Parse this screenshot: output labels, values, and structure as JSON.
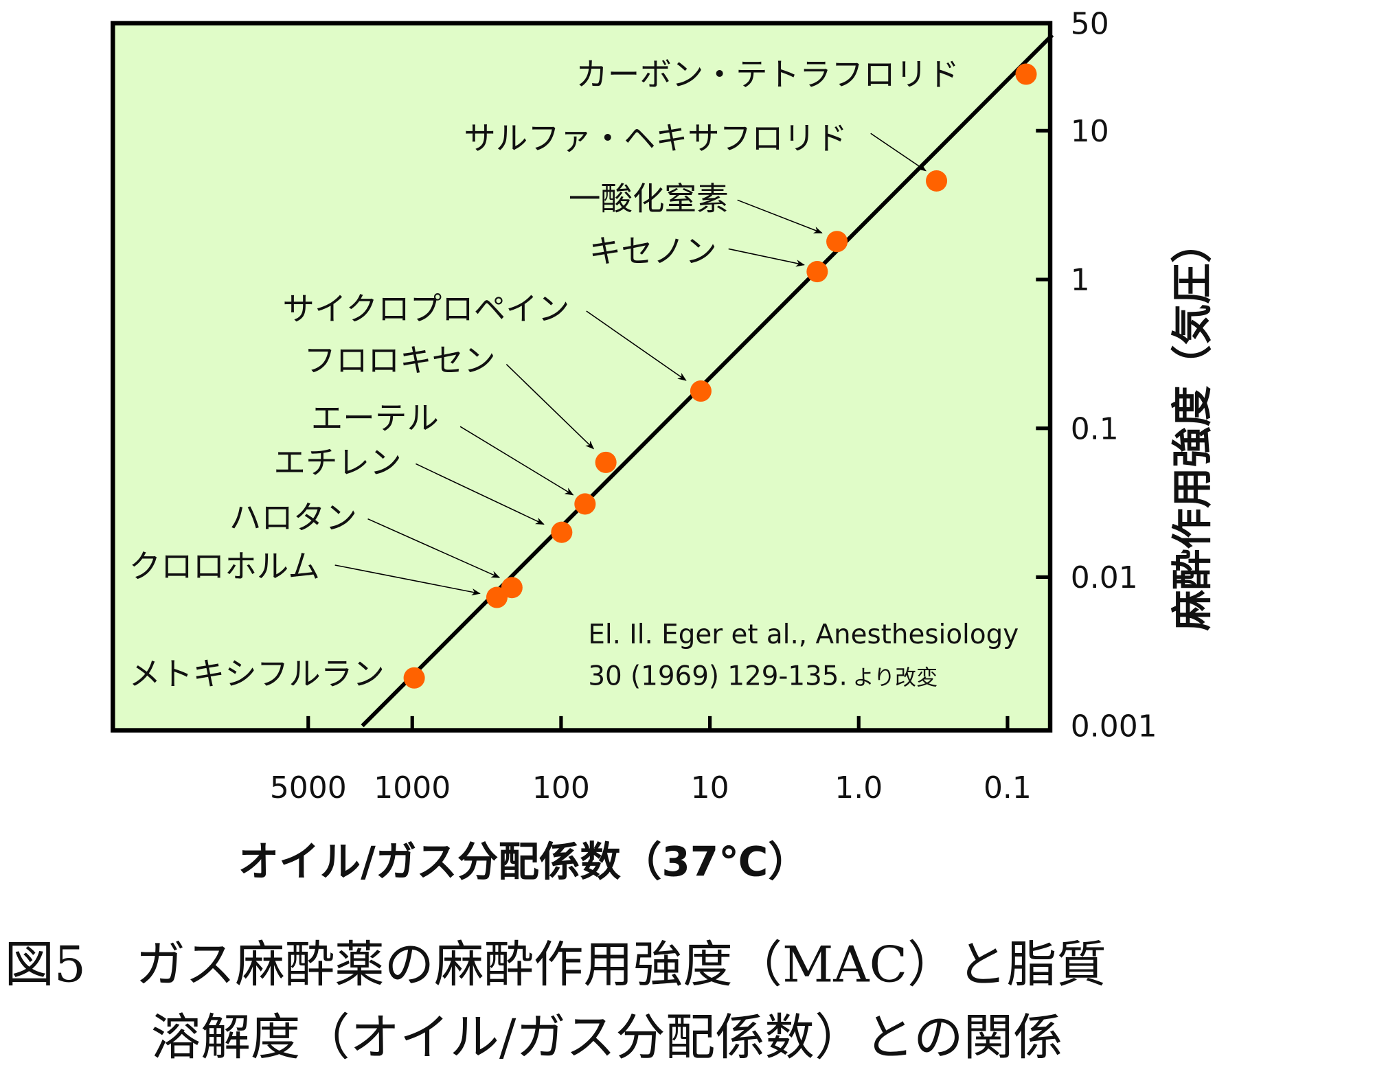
{
  "chart_data": {
    "type": "scatter",
    "title": "",
    "xlabel": "オイル/ガス分配係数（37℃）",
    "ylabel": "麻酔作用強度（気圧）",
    "x_scale": "log-reversed",
    "y_scale": "log",
    "xlim": [
      2500,
      0.045
    ],
    "ylim": [
      0.001,
      50
    ],
    "x_ticks": [
      5000,
      1000,
      100,
      10,
      1.0,
      0.1
    ],
    "x_tick_labels": [
      "5000",
      "1000",
      "100",
      "10",
      "1.0",
      "0.1"
    ],
    "y_ticks": [
      50,
      10,
      1,
      0.1,
      0.01,
      0.001
    ],
    "y_tick_labels": [
      "50",
      "10",
      "1",
      "0.1",
      "0.01",
      "0.001"
    ],
    "grid": false,
    "colors": {
      "background": "#e0fcc8",
      "point": "#ff6200",
      "line": "#000000"
    },
    "points": [
      {
        "name": "カーボン・テトラフロリド",
        "x": 0.075,
        "y": 24
      },
      {
        "name": "サルファ・ヘキサフロリド",
        "x": 0.3,
        "y": 4.6
      },
      {
        "name": "一酸化窒素",
        "x": 1.4,
        "y": 1.8
      },
      {
        "name": "キセノン",
        "x": 1.9,
        "y": 1.13
      },
      {
        "name": "サイクロプロペイン",
        "x": 11.5,
        "y": 0.178
      },
      {
        "name": "フロロキセン",
        "x": 50,
        "y": 0.059
      },
      {
        "name": "エーテル",
        "x": 69,
        "y": 0.031
      },
      {
        "name": "エチレン",
        "x": 99,
        "y": 0.02
      },
      {
        "name": "ハロタン",
        "x": 214,
        "y": 0.0085
      },
      {
        "name": "クロロホルム",
        "x": 270,
        "y": 0.0073
      },
      {
        "name": "メトキシフルラン",
        "x": 970,
        "y": 0.0021
      }
    ],
    "fit_line": {
      "x": [
        2165,
        0.05
      ],
      "y": [
        0.001,
        44
      ]
    },
    "annotation": {
      "line1": "El. Il. Eger et al., Anesthesiology",
      "line2": "30 (1969) 129-135.",
      "line2_suffix": "より改変"
    }
  },
  "caption": {
    "line1": "図5　ガス麻酔薬の麻酔作用強度（MAC）と脂質",
    "line2": "溶解度（オイル/ガス分配係数）との関係"
  }
}
